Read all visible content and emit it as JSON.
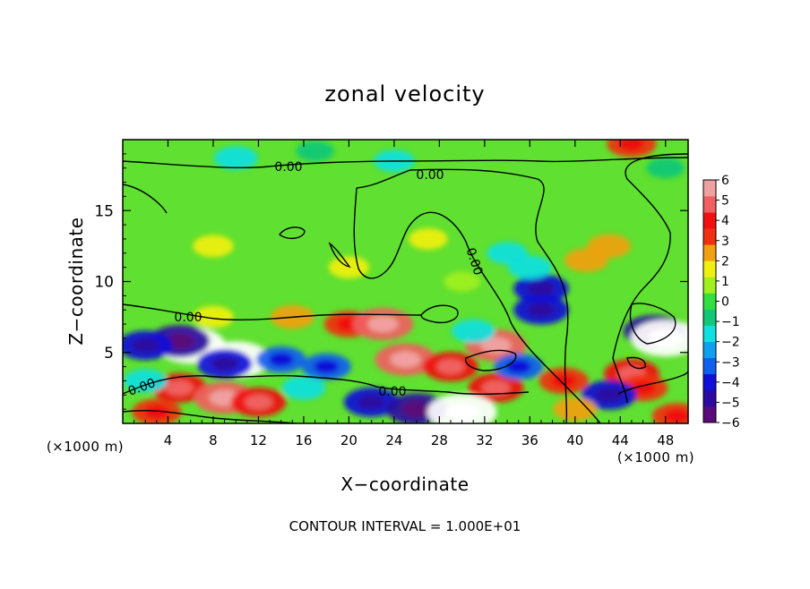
{
  "chart_data": {
    "type": "heatmap",
    "title": "zonal velocity",
    "xlabel": "X−coordinate",
    "ylabel": "Z−coordinate",
    "x_unit_label": "(×1000 m)",
    "x_ticks": [
      4,
      8,
      12,
      16,
      20,
      24,
      28,
      32,
      36,
      40,
      44,
      48
    ],
    "y_ticks": [
      5,
      10,
      15
    ],
    "xlim": [
      0,
      50
    ],
    "ylim": [
      0,
      20
    ],
    "colorbar": {
      "ticks": [
        6,
        5,
        4,
        3,
        2,
        1,
        0,
        -1,
        -2,
        -3,
        -4,
        -5,
        -6
      ],
      "range": [
        -6,
        6
      ],
      "colors": [
        "#5a0a78",
        "#2a0aa0",
        "#1010d8",
        "#1060f0",
        "#10a0f0",
        "#10e0e0",
        "#10c878",
        "#30e040",
        "#a0f020",
        "#f0f010",
        "#f0a010",
        "#f03010",
        "#f01010",
        "#f06060",
        "#f0a0a0"
      ]
    },
    "contour_labels": [
      "0.00",
      "0.00",
      "0.00",
      "0.00",
      "0.00",
      "0.00"
    ],
    "footnote": "CONTOUR INTERVAL = 1.000E+01",
    "features": [
      {
        "x": 6,
        "z": 5.5,
        "value": -6.5
      },
      {
        "x": 10,
        "z": 4.5,
        "value": -6.5
      },
      {
        "x": 5,
        "z": 5.8,
        "value": -5
      },
      {
        "x": 9,
        "z": 4.2,
        "value": -4
      },
      {
        "x": 2,
        "z": 5.5,
        "value": -4
      },
      {
        "x": 14,
        "z": 4.5,
        "value": -3
      },
      {
        "x": 18,
        "z": 4.0,
        "value": -3
      },
      {
        "x": 20,
        "z": 7.0,
        "value": 3
      },
      {
        "x": 23,
        "z": 7.0,
        "value": 5
      },
      {
        "x": 25,
        "z": 4.5,
        "value": 5
      },
      {
        "x": 29,
        "z": 4.0,
        "value": 4
      },
      {
        "x": 33,
        "z": 5.5,
        "value": 5
      },
      {
        "x": 33,
        "z": 2.5,
        "value": 4
      },
      {
        "x": 31,
        "z": 6.5,
        "value": -2
      },
      {
        "x": 35,
        "z": 4.0,
        "value": -3
      },
      {
        "x": 5,
        "z": 2.5,
        "value": 4
      },
      {
        "x": 9,
        "z": 1.8,
        "value": 5
      },
      {
        "x": 12,
        "z": 1.5,
        "value": 4
      },
      {
        "x": 3,
        "z": 0.8,
        "value": 3
      },
      {
        "x": 22,
        "z": 1.5,
        "value": -4
      },
      {
        "x": 26,
        "z": 1.0,
        "value": -5
      },
      {
        "x": 30,
        "z": 0.8,
        "value": -6.5
      },
      {
        "x": 37,
        "z": 9.5,
        "value": -4
      },
      {
        "x": 37,
        "z": 8.0,
        "value": -4
      },
      {
        "x": 36,
        "z": 11.0,
        "value": -2
      },
      {
        "x": 34,
        "z": 12.0,
        "value": -1.5
      },
      {
        "x": 41,
        "z": 11.5,
        "value": 2
      },
      {
        "x": 43,
        "z": 12.5,
        "value": 2
      },
      {
        "x": 47,
        "z": 6.5,
        "value": -5
      },
      {
        "x": 48,
        "z": 6.0,
        "value": -6.5
      },
      {
        "x": 45,
        "z": 3.5,
        "value": 4
      },
      {
        "x": 46,
        "z": 2.5,
        "value": 3
      },
      {
        "x": 43,
        "z": 2.0,
        "value": -4
      },
      {
        "x": 39,
        "z": 3.0,
        "value": 3
      },
      {
        "x": 40,
        "z": 1.0,
        "value": 2
      },
      {
        "x": 49,
        "z": 0.5,
        "value": 3
      },
      {
        "x": 10,
        "z": 18.7,
        "value": -2
      },
      {
        "x": 24,
        "z": 18.5,
        "value": -1.5
      },
      {
        "x": 17,
        "z": 19.2,
        "value": -1
      },
      {
        "x": 45,
        "z": 19.7,
        "value": 3
      },
      {
        "x": 48,
        "z": 18.0,
        "value": -1
      },
      {
        "x": 8,
        "z": 12.5,
        "value": 1.5
      },
      {
        "x": 20,
        "z": 11.0,
        "value": 1.5
      },
      {
        "x": 15,
        "z": 7.5,
        "value": 2
      },
      {
        "x": 8,
        "z": 7.5,
        "value": 1.5
      },
      {
        "x": 27,
        "z": 13.0,
        "value": 1.2
      },
      {
        "x": 30,
        "z": 10.0,
        "value": 0.8
      },
      {
        "x": 2,
        "z": 3.0,
        "value": -2
      },
      {
        "x": 16,
        "z": 2.5,
        "value": -2
      }
    ]
  }
}
